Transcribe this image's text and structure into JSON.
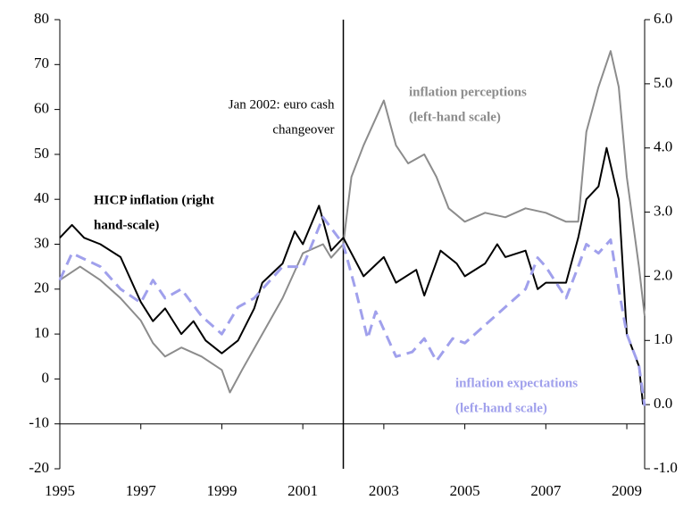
{
  "chart_data": {
    "type": "line",
    "xlim": [
      1995,
      2009.44
    ],
    "xticks": [
      1995,
      1997,
      1999,
      2001,
      2003,
      2005,
      2007,
      2009
    ],
    "ylim": [
      -20,
      80
    ],
    "yticks": [
      -20,
      -10,
      0,
      10,
      20,
      30,
      40,
      50,
      60,
      70,
      80
    ],
    "y2lim": [
      -1,
      6
    ],
    "y2ticks": [
      {
        "value": -1,
        "label": "-1.0"
      },
      {
        "value": 0,
        "label": "0.0"
      },
      {
        "value": 1,
        "label": "1.0"
      },
      {
        "value": 2,
        "label": "2.0"
      },
      {
        "value": 3,
        "label": "3.0"
      },
      {
        "value": 4,
        "label": "4.0"
      },
      {
        "value": 5,
        "label": "5.0"
      },
      {
        "value": 6,
        "label": "6.0"
      }
    ],
    "vline": 2002,
    "annotation": [
      "Jan 2002: euro cash",
      "changeover"
    ],
    "series": [
      {
        "label": [
          "inflation perceptions",
          "(left-hand scale)"
        ],
        "color": "#8c8c8c",
        "dash": false,
        "x": [
          1995,
          1995.5,
          1996,
          1996.5,
          1997,
          1997.3,
          1997.6,
          1998,
          1998.5,
          1999,
          1999.2,
          1999.5,
          2000,
          2000.5,
          2001,
          2001.5,
          2001.7,
          2002,
          2002.2,
          2002.5,
          2002.8,
          2003,
          2003.3,
          2003.6,
          2004,
          2004.3,
          2004.6,
          2005,
          2005.5,
          2006,
          2006.5,
          2007,
          2007.5,
          2007.8,
          2008,
          2008.3,
          2008.6,
          2008.8,
          2009,
          2009.3,
          2009.44
        ],
        "values": [
          22,
          25,
          22,
          18,
          13,
          8,
          5,
          7,
          5,
          2,
          -3,
          2,
          10,
          18,
          28,
          30,
          27,
          30,
          45,
          52,
          58,
          62,
          52,
          48,
          50,
          45,
          38,
          35,
          37,
          36,
          38,
          37,
          35,
          35,
          55,
          65,
          73,
          65,
          45,
          25,
          14
        ]
      },
      {
        "label": [
          "HICP inflation (right",
          "hand-scale)"
        ],
        "color": "#000000",
        "dash": false,
        "axis": "y2",
        "x": [
          1995,
          1995.3,
          1995.6,
          1996,
          1996.5,
          1997,
          1997.3,
          1997.6,
          1998,
          1998.3,
          1998.6,
          1999,
          1999.4,
          1999.8,
          2000,
          2000.5,
          2000.8,
          2001,
          2001.4,
          2001.7,
          2002,
          2002.5,
          2003,
          2003.3,
          2003.8,
          2004,
          2004.4,
          2004.8,
          2005,
          2005.5,
          2005.8,
          2006,
          2006.5,
          2006.8,
          2007,
          2007.5,
          2007.8,
          2008,
          2008.3,
          2008.5,
          2008.8,
          2009,
          2009.3,
          2009.4
        ],
        "values": [
          2.6,
          2.8,
          2.6,
          2.5,
          2.3,
          1.6,
          1.3,
          1.5,
          1.1,
          1.3,
          1.0,
          0.8,
          1.0,
          1.5,
          1.9,
          2.2,
          2.7,
          2.5,
          3.1,
          2.4,
          2.6,
          2.0,
          2.3,
          1.9,
          2.1,
          1.7,
          2.4,
          2.2,
          2.0,
          2.2,
          2.5,
          2.3,
          2.4,
          1.8,
          1.9,
          1.9,
          2.6,
          3.2,
          3.4,
          4.0,
          3.2,
          1.1,
          0.6,
          0.0
        ]
      },
      {
        "label": [
          "inflation expectations",
          "(left-hand scale)"
        ],
        "color": "#a0a0ec",
        "dash": true,
        "x": [
          1995,
          1995.3,
          1996,
          1996.5,
          1997,
          1997.3,
          1997.6,
          1998,
          1998.5,
          1999,
          1999.4,
          1999.8,
          2000,
          2000.5,
          2001,
          2001.5,
          2002,
          2002.3,
          2002.6,
          2002.8,
          2003,
          2003.3,
          2003.7,
          2004,
          2004.3,
          2004.7,
          2005,
          2005.5,
          2006,
          2006.5,
          2006.8,
          2007,
          2007.5,
          2007.8,
          2008,
          2008.3,
          2008.6,
          2008.8,
          2009,
          2009.3,
          2009.44
        ],
        "values": [
          22,
          28,
          25,
          20,
          17,
          22,
          18,
          20,
          14,
          10,
          16,
          18,
          20,
          25,
          25,
          36,
          30,
          20,
          9,
          15,
          11,
          5,
          6,
          9,
          4,
          9,
          8,
          12,
          16,
          20,
          27,
          25,
          18,
          25,
          30,
          28,
          31,
          20,
          10,
          3,
          -6
        ]
      }
    ]
  }
}
